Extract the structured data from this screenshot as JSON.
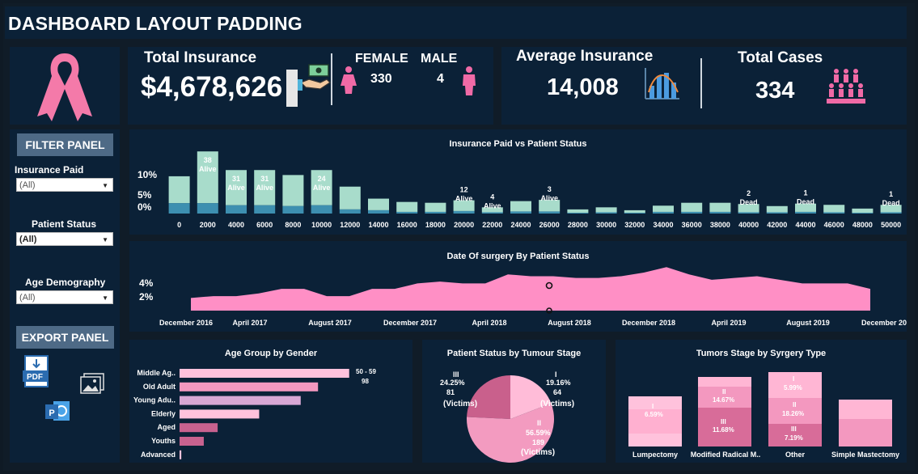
{
  "header": {
    "title": "DASHBOARD LAYOUT PADDING"
  },
  "kpi": {
    "total_insurance_label": "Total Insurance",
    "total_insurance_value": "$4,678,626",
    "female_label": "FEMALE",
    "female_value": "330",
    "male_label": "MALE",
    "male_value": "4",
    "avg_insurance_label": "Average Insurance",
    "avg_insurance_value": "14,008",
    "total_cases_label": "Total Cases",
    "total_cases_value": "334"
  },
  "filters": {
    "header": "FILTER PANEL",
    "insurance_label": "Insurance Paid",
    "insurance_value": "(All)",
    "status_label": "Patient Status",
    "status_value": "(All)",
    "age_label": "Age Demography",
    "age_value": "(All)"
  },
  "export": {
    "header": "EXPORT PANEL"
  },
  "icons": {
    "ribbon": "pink-ribbon-icon",
    "money": "money-hand-icon",
    "female": "female-icon",
    "male": "male-icon",
    "chart": "bar-chart-icon",
    "people": "people-group-icon",
    "pdf": "pdf-icon",
    "image": "image-icon",
    "powerpoint": "powerpoint-icon"
  },
  "colors": {
    "background": "#0b2137",
    "teal_light": "#a8dccb",
    "teal_dark": "#3d8fb0",
    "pink": "#ff8fc5",
    "pink_light": "#ffc2dc",
    "pink_dark": "#c8628f",
    "purple": "#d8a7d4"
  },
  "chart_data": [
    {
      "type": "bar",
      "title": "Insurance Paid vs Patient Status",
      "categories": [
        "0",
        "2000",
        "4000",
        "6000",
        "8000",
        "10000",
        "12000",
        "14000",
        "16000",
        "18000",
        "20000",
        "22000",
        "24000",
        "26000",
        "28000",
        "30000",
        "32000",
        "34000",
        "36000",
        "38000",
        "40000",
        "42000",
        "44000",
        "46000",
        "48000",
        "50000"
      ],
      "series": [
        {
          "name": "",
          "values": [
            6.5,
            12.5,
            8.5,
            8.5,
            7.5,
            8.5,
            5.5,
            2.8,
            2.4,
            2.2,
            2.6,
            1.2,
            2.5,
            2.8,
            0.8,
            1.2,
            0.6,
            1.5,
            2.2,
            2.2,
            2.0,
            1.5,
            2.0,
            1.8,
            1.0,
            1.8
          ]
        },
        {
          "name": "",
          "values": [
            2.5,
            2.5,
            2.0,
            2.0,
            1.8,
            2.0,
            1.0,
            0.8,
            0.4,
            0.4,
            0.6,
            0.3,
            0.5,
            0.5,
            0.2,
            0.3,
            0.2,
            0.4,
            0.4,
            0.4,
            0.3,
            0.3,
            0.4,
            0.3,
            0.2,
            0.3
          ]
        }
      ],
      "data_labels": [
        {
          "category": "2000",
          "count": "38",
          "status": "Alive"
        },
        {
          "category": "4000",
          "count": "31",
          "status": "Alive"
        },
        {
          "category": "6000",
          "count": "31",
          "status": "Alive"
        },
        {
          "category": "10000",
          "count": "24",
          "status": "Alive"
        },
        {
          "category": "20000",
          "count": "12",
          "status": "Alive"
        },
        {
          "category": "22000",
          "count": "4",
          "status": "Alive"
        },
        {
          "category": "26000",
          "count": "3",
          "status": "Alive"
        },
        {
          "category": "40000",
          "count": "2",
          "status": "Dead"
        },
        {
          "category": "44000",
          "count": "1",
          "status": "Dead"
        },
        {
          "category": "50000",
          "count": "1",
          "status": "Dead"
        }
      ],
      "y_ticks": [
        "10%",
        "5%",
        "0%"
      ],
      "ylim": [
        0,
        14
      ]
    },
    {
      "type": "area",
      "title": "Date Of surgery By Patient Status",
      "x_ticks": [
        "December 2016",
        "April 2017",
        "August 2017",
        "December 2017",
        "April 2018",
        "August 2018",
        "December 2018",
        "April 2019",
        "August 2019",
        "December 2019"
      ],
      "values": [
        1.4,
        1.6,
        1.6,
        1.9,
        2.4,
        2.4,
        1.6,
        1.6,
        2.4,
        2.4,
        3.0,
        3.2,
        3.0,
        3.0,
        4.0,
        3.8,
        3.8,
        3.6,
        3.6,
        3.8,
        4.2,
        4.8,
        4.0,
        3.4,
        3.6,
        3.8,
        3.4,
        3.0,
        3.0,
        3.0,
        2.4
      ],
      "y_ticks": [
        "4%",
        "2%"
      ],
      "ylim": [
        0,
        5
      ]
    },
    {
      "type": "bar",
      "orientation": "horizontal",
      "title": "Age Group by Gender",
      "categories": [
        "Middle Ag..",
        "Old Adult",
        "Young Adu..",
        "Elderly",
        "Aged",
        "Youths",
        "Advanced"
      ],
      "values": [
        98,
        80,
        70,
        46,
        22,
        14,
        1
      ],
      "value_labels": [
        {
          "category": "Middle Ag..",
          "label": "50 - 59",
          "value": "98"
        }
      ],
      "xlim": [
        0,
        100
      ]
    },
    {
      "type": "pie",
      "title": "Patient Status by Tumour Stage",
      "slices": [
        {
          "stage": "III",
          "percent": 24.25,
          "count": 81,
          "label": "(Victims)"
        },
        {
          "stage": "I",
          "percent": 19.16,
          "count": 64,
          "label": "(Victims)"
        },
        {
          "stage": "II",
          "percent": 56.59,
          "count": 189,
          "label": "(Victims)"
        }
      ],
      "slice_texts": {
        "iii": "III",
        "iii_pct": "24.25%",
        "iii_count": "81",
        "i": "I",
        "i_pct": "19.16%",
        "i_count": "64",
        "ii": "II",
        "ii_pct": "56.59%",
        "ii_count": "189",
        "victims": "(Victims)"
      }
    },
    {
      "type": "bar",
      "stacked": true,
      "title": "Tumors Stage by Syrgery Type",
      "categories": [
        "Lumpectomy",
        "Modified Radical M..",
        "Other",
        "Simple Mastectomy"
      ],
      "series": [
        {
          "name": "III",
          "values": [
            0,
            11.68,
            7.19,
            0
          ]
        },
        {
          "name": "II",
          "values": [
            0,
            14.67,
            18.26,
            0
          ]
        },
        {
          "name": "I",
          "values": [
            6.59,
            0,
            5.99,
            0
          ]
        }
      ],
      "labels": {
        "lump_i": "I",
        "lump_i_pct": "6.59%",
        "mod_ii": "II",
        "mod_ii_pct": "14.67%",
        "mod_iii": "III",
        "mod_iii_pct": "11.68%",
        "oth_i": "I",
        "oth_i_pct": "5.99%",
        "oth_ii": "II",
        "oth_ii_pct": "18.26%",
        "oth_iii": "III",
        "oth_iii_pct": "7.19%"
      }
    }
  ]
}
